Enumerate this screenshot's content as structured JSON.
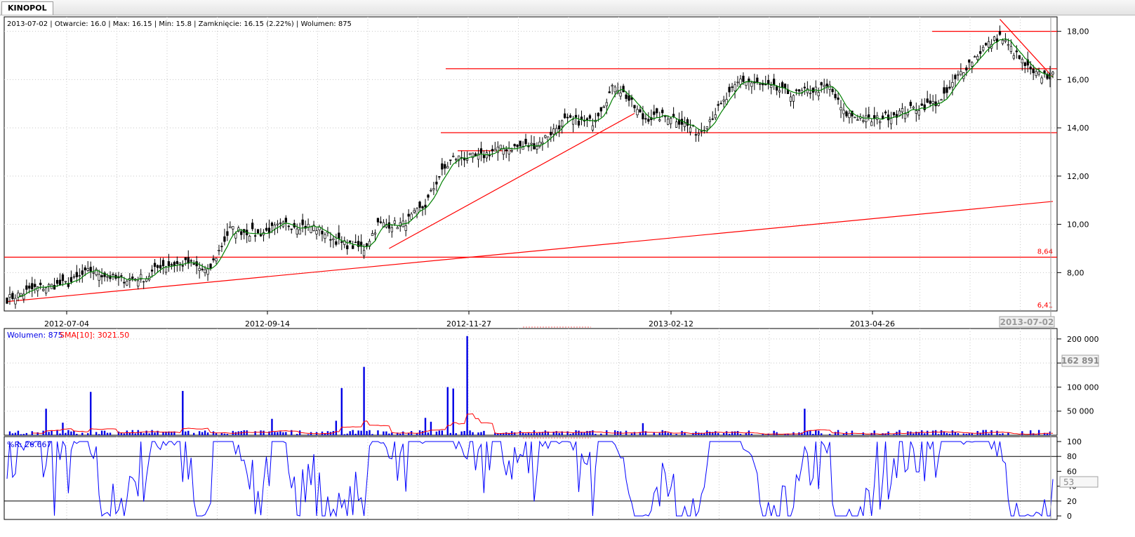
{
  "window": {
    "tab_label": "KINOPOL"
  },
  "colors": {
    "candle_up": "#ffffff",
    "candle_down": "#000000",
    "sma": "#008000",
    "volume": "#0000e6",
    "volume_sma": "#ff0000",
    "wr": "#0000ff",
    "trendline": "#ff0000",
    "grid": "#c8c8c8"
  },
  "chart_data": [
    {
      "type": "candlestick",
      "panel": "price",
      "info_line": "2013-07-02 | Otwarcie: 16.0 | Max: 16.15 | Min: 15.8 | Zamknięcie: 16.15 (2.22%)  | Wolumen: 875",
      "y_range": [
        6.41,
        18.6
      ],
      "y_ticks": [
        "18,00",
        "16,00",
        "14,00",
        "12,00",
        "10,00",
        "8,00"
      ],
      "y_tick_values": [
        18,
        16,
        14,
        12,
        10,
        8
      ],
      "x_date_labels": [
        "2012-07-04",
        "2012-09-14",
        "2012-11-27",
        "2013-02-12",
        "2013-04-26"
      ],
      "cursor_date": "2013-07-02",
      "level_labels": [
        {
          "text": "8,64",
          "value": 8.64
        },
        {
          "text": "6,41",
          "value": 6.41
        }
      ],
      "horizontal_lines": [
        8.64,
        13.8,
        16.45,
        18.0
      ],
      "anchors": [
        {
          "i": 0,
          "v": 6.9
        },
        {
          "i": 10,
          "v": 7.35
        },
        {
          "i": 22,
          "v": 7.55
        },
        {
          "i": 30,
          "v": 8.1
        },
        {
          "i": 40,
          "v": 7.7
        },
        {
          "i": 50,
          "v": 7.8
        },
        {
          "i": 55,
          "v": 8.3
        },
        {
          "i": 65,
          "v": 8.4
        },
        {
          "i": 72,
          "v": 8.0
        },
        {
          "i": 80,
          "v": 9.8
        },
        {
          "i": 90,
          "v": 9.6
        },
        {
          "i": 100,
          "v": 10.0
        },
        {
          "i": 110,
          "v": 9.9
        },
        {
          "i": 120,
          "v": 9.2
        },
        {
          "i": 128,
          "v": 9.0
        },
        {
          "i": 133,
          "v": 10.0
        },
        {
          "i": 142,
          "v": 10.0
        },
        {
          "i": 150,
          "v": 10.8
        },
        {
          "i": 155,
          "v": 12.0
        },
        {
          "i": 160,
          "v": 12.75
        },
        {
          "i": 170,
          "v": 12.8
        },
        {
          "i": 175,
          "v": 13.1
        },
        {
          "i": 190,
          "v": 13.3
        },
        {
          "i": 200,
          "v": 14.3
        },
        {
          "i": 210,
          "v": 14.25
        },
        {
          "i": 218,
          "v": 15.8
        },
        {
          "i": 222,
          "v": 15.3
        },
        {
          "i": 228,
          "v": 14.4
        },
        {
          "i": 238,
          "v": 14.5
        },
        {
          "i": 248,
          "v": 13.8
        },
        {
          "i": 258,
          "v": 15.2
        },
        {
          "i": 263,
          "v": 16.0
        },
        {
          "i": 272,
          "v": 15.7
        },
        {
          "i": 282,
          "v": 15.4
        },
        {
          "i": 295,
          "v": 15.7
        },
        {
          "i": 300,
          "v": 14.6
        },
        {
          "i": 310,
          "v": 14.3
        },
        {
          "i": 322,
          "v": 14.7
        },
        {
          "i": 335,
          "v": 15.1
        },
        {
          "i": 342,
          "v": 16.3
        },
        {
          "i": 350,
          "v": 17.3
        },
        {
          "i": 356,
          "v": 17.8
        },
        {
          "i": 362,
          "v": 17.0
        },
        {
          "i": 368,
          "v": 16.2
        },
        {
          "i": 375,
          "v": 16.15
        }
      ]
    },
    {
      "type": "bar",
      "panel": "volume",
      "legend_volume": "Wolumen: 875",
      "legend_sma": "SMA[10]: 3021.50",
      "y_range": [
        0,
        210000
      ],
      "y_ticks": [
        "200 000",
        "150 000",
        "100 000",
        "50 000"
      ],
      "y_tick_values": [
        200000,
        150000,
        100000,
        50000
      ],
      "readout": "162 891",
      "spikes": [
        {
          "i": 14,
          "v": 55000
        },
        {
          "i": 30,
          "v": 90000
        },
        {
          "i": 63,
          "v": 92000
        },
        {
          "i": 120,
          "v": 98000
        },
        {
          "i": 128,
          "v": 142000
        },
        {
          "i": 158,
          "v": 100000
        },
        {
          "i": 160,
          "v": 97000
        },
        {
          "i": 165,
          "v": 206000
        },
        {
          "i": 286,
          "v": 55000
        },
        {
          "i": 20,
          "v": 26000
        },
        {
          "i": 95,
          "v": 34000
        },
        {
          "i": 150,
          "v": 36000
        },
        {
          "i": 152,
          "v": 28000
        },
        {
          "i": 118,
          "v": 30000
        },
        {
          "i": 228,
          "v": 25000
        }
      ]
    },
    {
      "type": "line",
      "panel": "williams_r",
      "legend": "%R: 26.667",
      "y_range": [
        0,
        100
      ],
      "y_ticks": [
        "100",
        "80",
        "60",
        "40",
        "20",
        "0"
      ],
      "y_tick_values": [
        100,
        80,
        60,
        40,
        20,
        0
      ],
      "levels": [
        80,
        20
      ],
      "readout": "53"
    }
  ]
}
